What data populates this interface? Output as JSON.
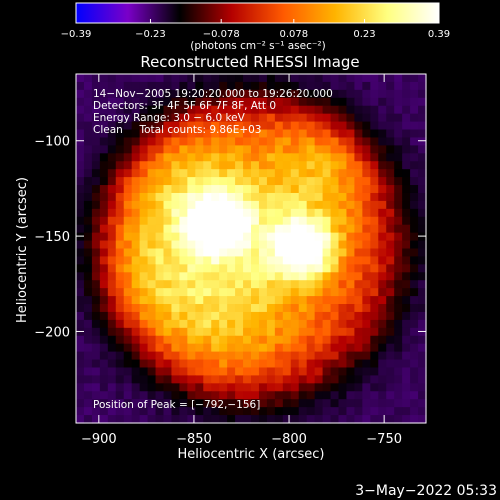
{
  "chart_data": {
    "type": "heatmap",
    "title": "Reconstructed RHESSI Image",
    "xlabel": "Heliocentric X (arcsec)",
    "ylabel": "Heliocentric Y (arcsec)",
    "xlim": [
      -912,
      -728
    ],
    "ylim": [
      -248,
      -65
    ],
    "x_ticks": [
      -900,
      -850,
      -800,
      -750
    ],
    "x_tick_labels": [
      "−900",
      "−850",
      "−800",
      "−750"
    ],
    "y_ticks": [
      -100,
      -150,
      -200
    ],
    "y_tick_labels": [
      "−100",
      "−150",
      "−200"
    ],
    "colorbar": {
      "min": -0.39,
      "max": 0.39,
      "ticks": [
        -0.39,
        -0.23,
        -0.078,
        0.078,
        0.23,
        0.39
      ],
      "tick_labels": [
        "−0.39",
        "−0.23",
        "−0.078",
        "0.078",
        "0.23",
        "0.39"
      ],
      "units": "(photons cm⁻² s⁻¹ asec⁻²)",
      "colormap": [
        "#0000ff",
        "#7a00c8",
        "#000000",
        "#b40000",
        "#ff5a00",
        "#ffb400",
        "#ffff80",
        "#ffffff"
      ]
    },
    "annotations": [
      "14−Nov−2005 19:20:20.000 to 19:26:20.000",
      "Detectors: 3F 4F 5F 6F 7F 8F, Att 0",
      "Energy Range: 3.0 − 6.0 keV",
      "Clean     Total counts: 9.86E+03"
    ],
    "peak_label": "Position of Peak = [−792,−156]",
    "peak": [
      -792,
      -156
    ],
    "sources": [
      {
        "x": -792,
        "y": -156,
        "sigma": 11,
        "amp": 0.39
      },
      {
        "x": -838,
        "y": -143,
        "sigma": 11,
        "amp": 0.36
      },
      {
        "x": -812,
        "y": -148,
        "sigma": 32,
        "amp": 0.19
      },
      {
        "x": -860,
        "y": -125,
        "sigma": 26,
        "amp": 0.17
      },
      {
        "x": -835,
        "y": -195,
        "sigma": 26,
        "amp": 0.15
      },
      {
        "x": -878,
        "y": -175,
        "sigma": 24,
        "amp": 0.14
      },
      {
        "x": -775,
        "y": -105,
        "sigma": 22,
        "amp": 0.13
      }
    ],
    "background": -0.22,
    "grid": false
  },
  "timestamp": "3−May−2022 05:33",
  "colors": {
    "background": "#000000",
    "text": "#ffffff"
  }
}
